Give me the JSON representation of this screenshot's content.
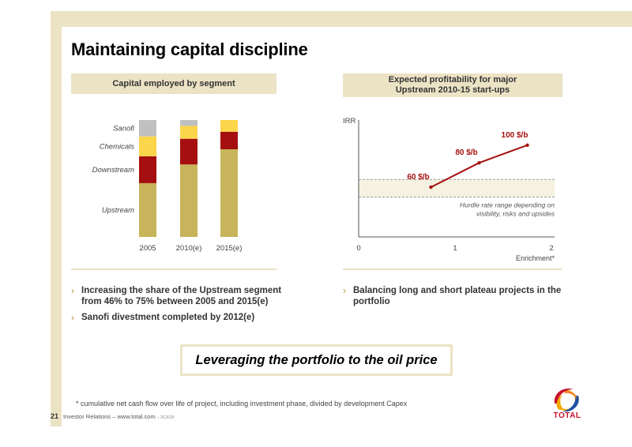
{
  "title": "Maintaining capital discipline",
  "left_panel": {
    "header": "Capital employed by segment",
    "chart_data": {
      "type": "bar",
      "stacked": true,
      "categories": [
        "2005",
        "2010(e)",
        "2015(e)"
      ],
      "series": [
        {
          "name": "Upstream",
          "values": [
            46,
            62,
            75
          ],
          "color": "#c8b45a"
        },
        {
          "name": "Downstream",
          "values": [
            23,
            22,
            15
          ],
          "color": "#a50f0f"
        },
        {
          "name": "Chemicals",
          "values": [
            17,
            11,
            10
          ],
          "color": "#fbd54a"
        },
        {
          "name": "Sanofi",
          "values": [
            14,
            5,
            0
          ],
          "color": "#c0c0c0"
        }
      ],
      "title": "Capital employed by segment",
      "xlabel": "",
      "ylabel": "",
      "ylim": [
        0,
        100
      ],
      "legend": "left"
    }
  },
  "right_panel": {
    "header_line1": "Expected profitability for major",
    "header_line2": "Upstream 2010-15 start-ups",
    "chart_data": {
      "type": "line",
      "x": [
        0.75,
        1.25,
        1.75
      ],
      "y": [
        45,
        67,
        83
      ],
      "point_labels": [
        "60 $/b",
        "80 $/b",
        "100 $/b"
      ],
      "xlabel": "Enrichment*",
      "ylabel": "IRR",
      "xticks": [
        "0",
        "1",
        "2"
      ],
      "xlim": [
        0,
        2
      ],
      "ylim": [
        0,
        100
      ],
      "band_range": [
        36,
        52
      ],
      "band_label_line1": "Hurdle rate range depending on",
      "band_label_line2": "visibility, risks and upsides",
      "line_color": "#a50f0f"
    }
  },
  "bullets_left": [
    "Increasing the share of the Upstream segment from 46% to 75% between 2005 and 2015(e)",
    "Sanofi divestment completed by 2012(e)"
  ],
  "bullets_right": [
    "Balancing long and short plateau projects in the portfolio"
  ],
  "chevron": "›",
  "callout": "Leveraging the portfolio to the oil price",
  "footnote": "*  cumulative net cash flow over life of project, including investment phase, divided by development Capex",
  "footer": {
    "page_number": "21",
    "text": "Investor Relations – www.total.com",
    "code": "– 3C2029"
  },
  "logo_text": "TOTAL"
}
